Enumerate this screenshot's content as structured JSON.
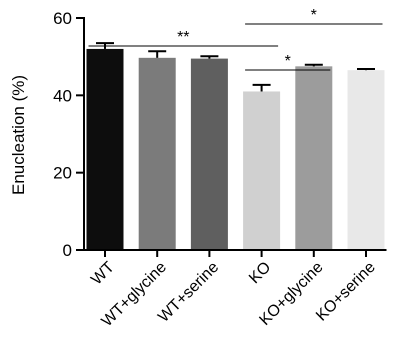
{
  "chart_data": {
    "type": "bar",
    "title": "",
    "xlabel": "",
    "ylabel": "Enucleation (%)",
    "ylim": [
      0,
      60
    ],
    "yticks": [
      "0",
      "20",
      "40",
      "60"
    ],
    "grid": false,
    "legend": "none",
    "categories": [
      "WT",
      "WT+glycine",
      "WT+serine",
      "KO",
      "KO+glycine",
      "KO+serine"
    ],
    "values": [
      52.0,
      49.7,
      49.5,
      41.0,
      47.5,
      46.5
    ],
    "errors": [
      1.5,
      1.7,
      0.6,
      1.7,
      0.4,
      0.3
    ],
    "bar_colors": [
      "#0d0d0d",
      "#7b7b7b",
      "#5f5f5f",
      "#d0d0d0",
      "#9c9c9c",
      "#e8e8e8"
    ],
    "significance": [
      {
        "from": "WT",
        "to": "KO",
        "label": "**"
      },
      {
        "from": "KO",
        "to": "KO+glycine",
        "label": "*"
      },
      {
        "from": "KO",
        "to": "KO+serine",
        "label": "*"
      }
    ]
  }
}
